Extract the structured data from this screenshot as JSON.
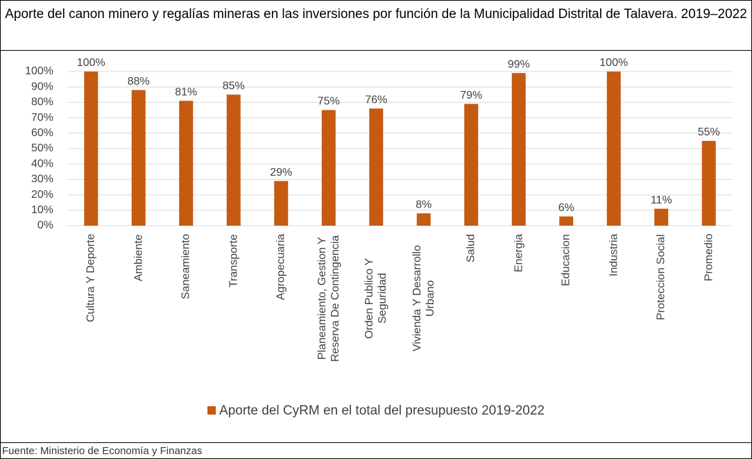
{
  "chart_data": {
    "type": "bar",
    "title": "Aporte del canon minero y regalías mineras en las inversiones por función de la Municipalidad Distrital de Talavera. 2019–2022",
    "source": "Fuente: Ministerio de Economía y Finanzas",
    "categories": [
      "Cultura Y Deporte",
      "Ambiente",
      "Saneamiento",
      "Transporte",
      "Agropecuaria",
      "Planeamiento, Gestion Y Reserva De Contingencia",
      "Orden Publico Y Seguridad",
      "Vivienda Y Desarrollo Urbano",
      "Salud",
      "Energia",
      "Educacion",
      "Industria",
      "Proteccion Social",
      "Promedio"
    ],
    "series": [
      {
        "name": "Aporte del CyRM en el total del presupuesto 2019-2022",
        "color": "#c55a11",
        "values": [
          100,
          88,
          81,
          85,
          29,
          75,
          76,
          8,
          79,
          99,
          6,
          100,
          11,
          55
        ],
        "value_labels": [
          "100%",
          "88%",
          "81%",
          "85%",
          "29%",
          "75%",
          "76%",
          "8%",
          "79%",
          "99%",
          "6%",
          "100%",
          "11%",
          "55%"
        ]
      }
    ],
    "ylim": [
      0,
      100
    ],
    "yticks": [
      {
        "value": 0,
        "label": "0%"
      },
      {
        "value": 10,
        "label": "10%"
      },
      {
        "value": 20,
        "label": "20%"
      },
      {
        "value": 30,
        "label": "30%"
      },
      {
        "value": 40,
        "label": "40%"
      },
      {
        "value": 50,
        "label": "50%"
      },
      {
        "value": 60,
        "label": "60%"
      },
      {
        "value": 70,
        "label": "70%"
      },
      {
        "value": 80,
        "label": "80%"
      },
      {
        "value": 90,
        "label": "90%"
      },
      {
        "value": 100,
        "label": "100%"
      }
    ],
    "grid": true,
    "legend": "bottom"
  }
}
